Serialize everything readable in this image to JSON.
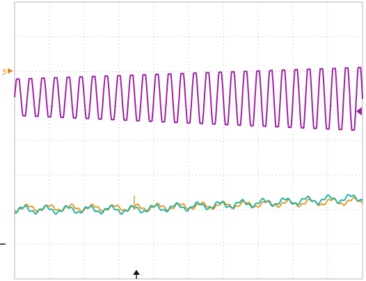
{
  "screen": {
    "background": "#ffffff",
    "grid_color": "#b4b4b4",
    "grid_divisions_x": 10,
    "grid_divisions_y": 8
  },
  "markers": {
    "channel_marker_label": "3",
    "channel_marker_color": "#e08a1e",
    "trigger_level_color": "#9b1fa0",
    "trigger_position_icon": "up-arrow-icon",
    "ground_marker_icon": "dash-icon"
  },
  "traces": [
    {
      "name": "",
      "color": "#9b1fa0",
      "kind": "sine",
      "cycles": 27.5,
      "x_start": 0.0,
      "x_end": 1.0,
      "amp_start": 0.95,
      "amp_end": 1.65,
      "center_start": 2.75,
      "center_end": 2.8
    },
    {
      "name": "",
      "color": "#e59a2a",
      "kind": "ramp",
      "x_start": 0.0,
      "x_end": 1.0,
      "level_start": 5.95,
      "level_end": 5.75,
      "ripple": 0.08
    },
    {
      "name": "",
      "color": "#1fb2a6",
      "kind": "ramp",
      "x_start": 0.0,
      "x_end": 1.0,
      "level_start": 6.0,
      "level_end": 5.65,
      "ripple": 0.09
    }
  ]
}
